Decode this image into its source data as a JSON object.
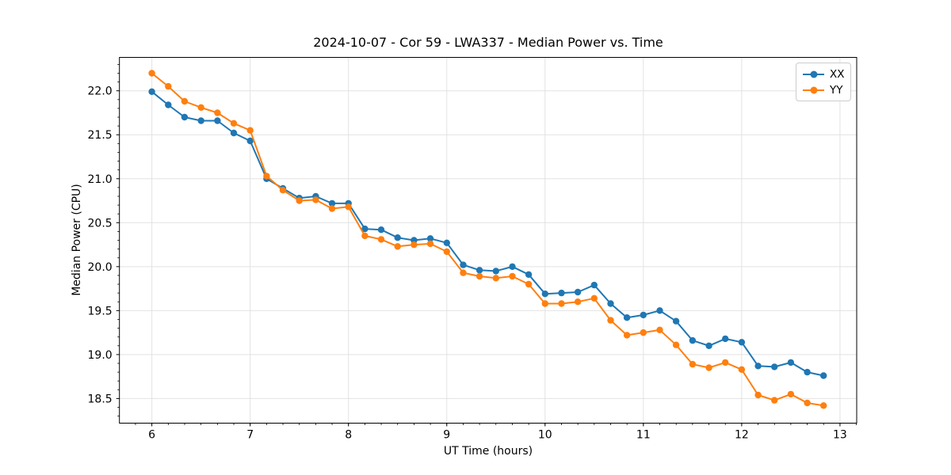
{
  "chart_data": {
    "type": "line",
    "title": "2024-10-07 - Cor 59 - LWA337 - Median Power vs. Time",
    "xlabel": "UT Time (hours)",
    "ylabel": "Median Power (CPU)",
    "xlim": [
      5.67,
      13.17
    ],
    "ylim": [
      18.22,
      22.38
    ],
    "xticks": [
      6,
      7,
      8,
      9,
      10,
      11,
      12,
      13
    ],
    "yticks": [
      18.5,
      19.0,
      19.5,
      20.0,
      20.5,
      21.0,
      21.5,
      22.0
    ],
    "x_minor_interval": 0.166667,
    "y_minor_interval": 0.1,
    "grid": true,
    "legend_position": "upper right",
    "x": [
      6.0,
      6.167,
      6.333,
      6.5,
      6.667,
      6.833,
      7.0,
      7.167,
      7.333,
      7.5,
      7.667,
      7.833,
      8.0,
      8.167,
      8.333,
      8.5,
      8.667,
      8.833,
      9.0,
      9.167,
      9.333,
      9.5,
      9.667,
      9.833,
      10.0,
      10.167,
      10.333,
      10.5,
      10.667,
      10.833,
      11.0,
      11.167,
      11.333,
      11.5,
      11.667,
      11.833,
      12.0,
      12.167,
      12.333,
      12.5,
      12.667,
      12.833
    ],
    "series": [
      {
        "name": "XX",
        "color": "#1f77b4",
        "values": [
          21.99,
          21.84,
          21.7,
          21.66,
          21.66,
          21.52,
          21.43,
          21.0,
          20.89,
          20.78,
          20.8,
          20.72,
          20.72,
          20.43,
          20.42,
          20.33,
          20.3,
          20.32,
          20.27,
          20.02,
          19.96,
          19.95,
          20.0,
          19.91,
          19.69,
          19.7,
          19.71,
          19.79,
          19.58,
          19.42,
          19.45,
          19.5,
          19.38,
          19.16,
          19.1,
          19.18,
          19.14,
          18.87,
          18.86,
          18.91,
          18.8,
          18.76
        ]
      },
      {
        "name": "YY",
        "color": "#ff7f0e",
        "values": [
          22.2,
          22.05,
          21.88,
          21.81,
          21.75,
          21.63,
          21.55,
          21.03,
          20.87,
          20.75,
          20.76,
          20.66,
          20.68,
          20.35,
          20.31,
          20.23,
          20.25,
          20.26,
          20.17,
          19.93,
          19.89,
          19.87,
          19.89,
          19.8,
          19.58,
          19.58,
          19.6,
          19.64,
          19.39,
          19.22,
          19.25,
          19.28,
          19.11,
          18.89,
          18.85,
          18.91,
          18.83,
          18.54,
          18.48,
          18.55,
          18.45,
          18.42
        ]
      }
    ],
    "style": {
      "grid_color": "#e2e2e2",
      "spine_color": "#000000",
      "tick_color": "#000000",
      "marker_radius": 4.2,
      "line_width": 2
    }
  }
}
